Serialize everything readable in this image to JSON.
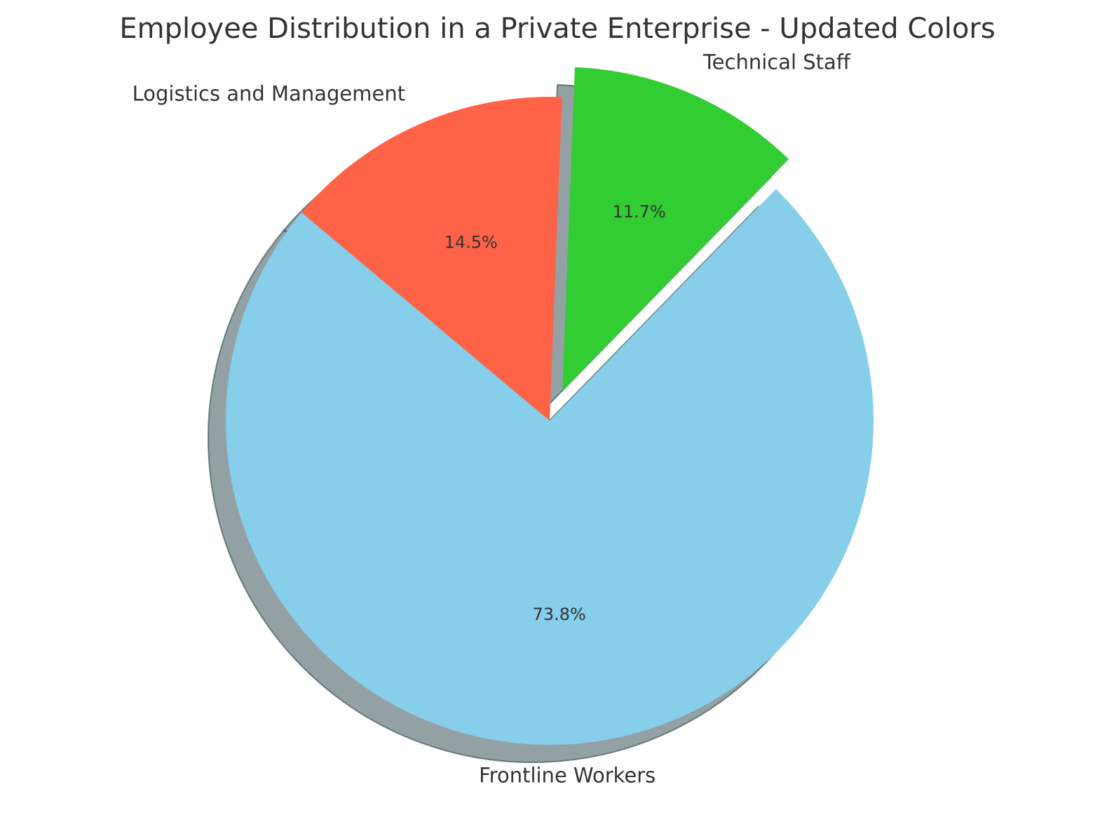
{
  "chart_data": {
    "type": "pie",
    "title": "Employee Distribution in a Private Enterprise - Updated Colors",
    "slices": [
      {
        "label": "Frontline Workers",
        "value": 73.8,
        "pct_label": "73.8%",
        "color": "#87CEEB",
        "exploded": false
      },
      {
        "label": "Technical Staff",
        "value": 11.7,
        "pct_label": "11.7%",
        "color": "#32CD32",
        "exploded": true
      },
      {
        "label": "Logistics and Management",
        "value": 14.5,
        "pct_label": "14.5%",
        "color": "#FF6347",
        "exploded": false
      }
    ],
    "start_angle_deg": 140,
    "direction": "counterclockwise",
    "shadow": true,
    "legend": "none"
  }
}
